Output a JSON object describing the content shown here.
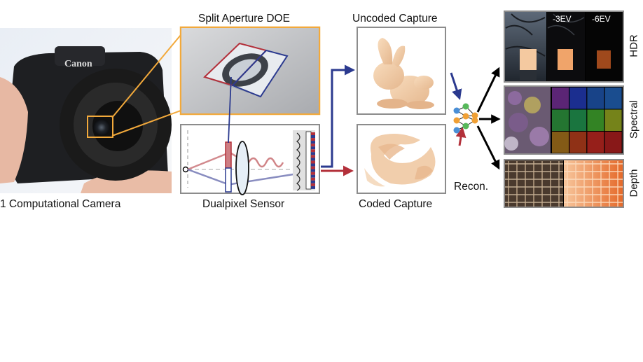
{
  "labels": {
    "camera": "1 Computational Camera",
    "doe": "Split Aperture DOE",
    "sensor": "Dualpixel Sensor",
    "uncoded": "Uncoded Capture",
    "coded": "Coded Capture",
    "recon": "Recon.",
    "hdr": "HDR",
    "spectral": "Spectral",
    "depth": "Depth",
    "ev3": "-3EV",
    "ev6": "-6EV"
  },
  "camera_brand": "Canon",
  "colors": {
    "orange": "#f2a93b",
    "blue": "#2b3a8f",
    "red": "#b3303a",
    "gray_border": "#8c8c8c"
  }
}
